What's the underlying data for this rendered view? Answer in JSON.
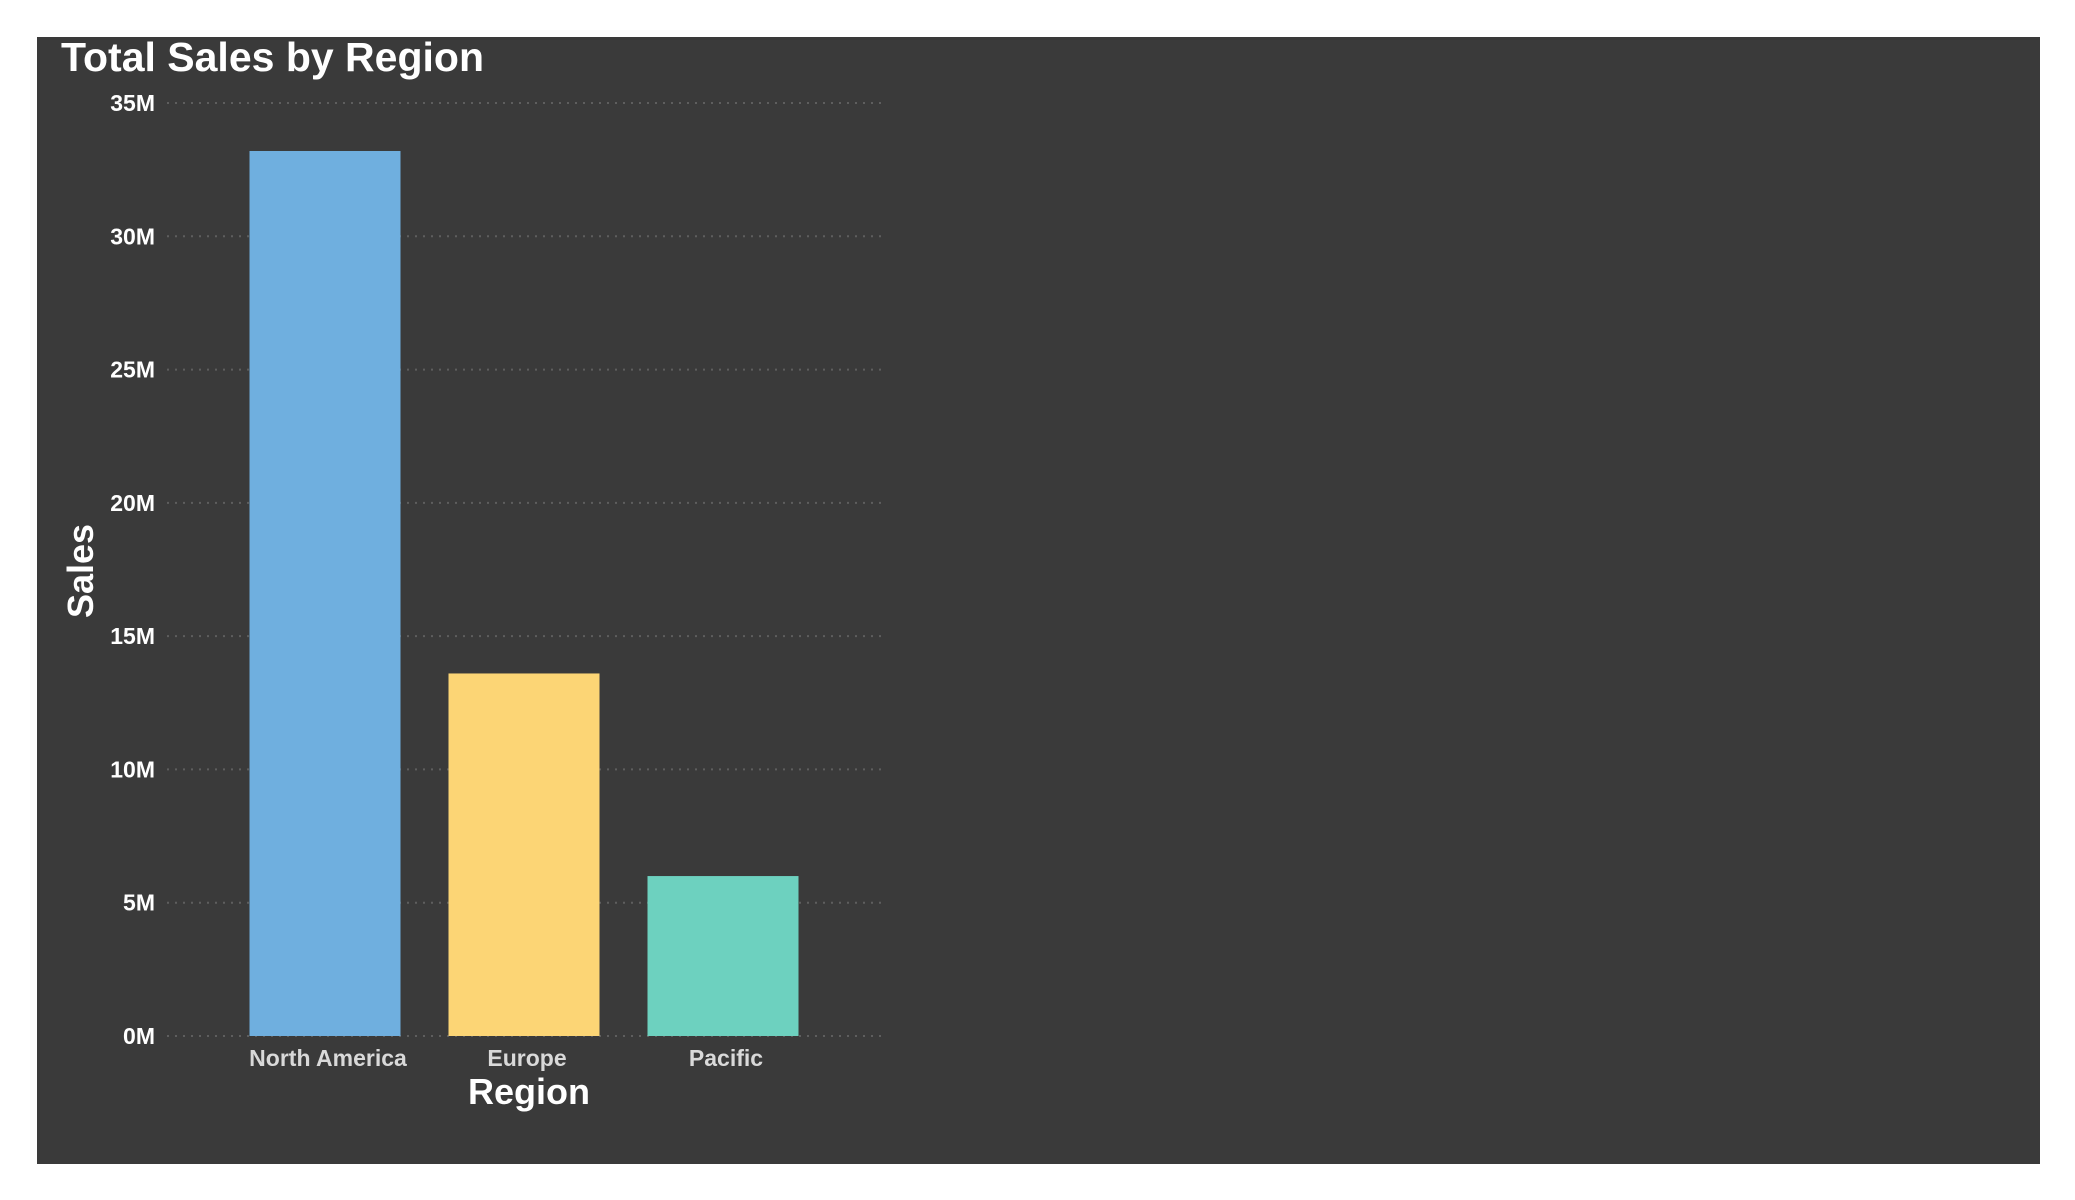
{
  "chart_data": {
    "type": "bar",
    "title": "Total Sales by Region",
    "xlabel": "Region",
    "ylabel": "Sales",
    "categories": [
      "North America",
      "Europe",
      "Pacific"
    ],
    "values": [
      33.2,
      13.6,
      6.0
    ],
    "value_unit": "M",
    "ylim": [
      0,
      35
    ],
    "yticks": [
      0,
      5,
      10,
      15,
      20,
      25,
      30,
      35
    ],
    "ytick_labels": [
      "0M",
      "5M",
      "10M",
      "15M",
      "20M",
      "25M",
      "30M",
      "35M"
    ],
    "grid": true,
    "legend": "none",
    "colors": [
      "#6fafdf",
      "#fcd575",
      "#6dd1bf"
    ],
    "background": "#3a3a3a"
  }
}
